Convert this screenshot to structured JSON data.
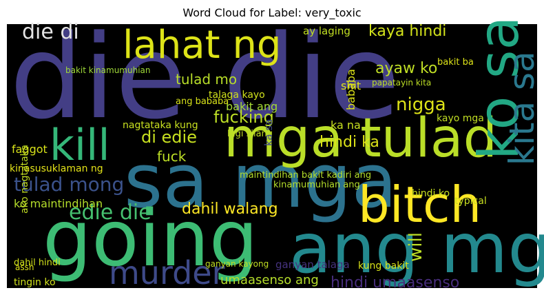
{
  "chart_data": {
    "type": "wordcloud",
    "title": "Word Cloud for Label: very_toxic",
    "background": "#000000",
    "words": [
      {
        "text": "die die",
        "color": "#433e85"
      },
      {
        "text": "sa mga",
        "color": "#2c728e"
      },
      {
        "text": "going",
        "color": "#3dbc74"
      },
      {
        "text": "ang mga",
        "color": "#23898e"
      },
      {
        "text": "mga tulad",
        "color": "#bade28"
      },
      {
        "text": "kill",
        "color": "#35b779"
      },
      {
        "text": "bitch",
        "color": "#fde725"
      },
      {
        "text": "murder",
        "color": "#3e4a89"
      },
      {
        "text": "lahat ng",
        "color": "#dde318"
      },
      {
        "text": "ko sa",
        "color": "#22a884"
      },
      {
        "text": "kita sa",
        "color": "#2a788e"
      },
      {
        "text": "die di",
        "color": "#e5e5e5"
      },
      {
        "text": "kaya hindi",
        "color": "#d2e21b"
      },
      {
        "text": "ay laging",
        "color": "#c2df23"
      },
      {
        "text": "ayaw ko",
        "color": "#c0df25"
      },
      {
        "text": "tulad mo",
        "color": "#b8de29"
      },
      {
        "text": "nigga",
        "color": "#dde318"
      },
      {
        "text": "fucking",
        "color": "#bddf26"
      },
      {
        "text": "di edie",
        "color": "#c7e020"
      },
      {
        "text": "fuck",
        "color": "#bddf26"
      },
      {
        "text": "hindi ka",
        "color": "#dde318"
      },
      {
        "text": "tulad mong",
        "color": "#3b528b"
      },
      {
        "text": "edie die",
        "color": "#46c06f"
      },
      {
        "text": "dahil walang",
        "color": "#fde725"
      },
      {
        "text": "will",
        "color": "#bddf26"
      },
      {
        "text": "hindi umaasenso",
        "color": "#472d7b"
      },
      {
        "text": "umaasenso ang",
        "color": "#b5de2b"
      },
      {
        "text": "shit",
        "color": "#dde318"
      },
      {
        "text": "bakit ang",
        "color": "#a5db36"
      },
      {
        "text": "faggot",
        "color": "#d8e219"
      },
      {
        "text": "kinasusuklaman ng",
        "color": "#e5e419"
      },
      {
        "text": "ko maintindihan",
        "color": "#b5de2b"
      },
      {
        "text": "maintindihan bakit kadiri ang",
        "color": "#b5de2b"
      },
      {
        "text": "nagtataka kung",
        "color": "#c8e020"
      },
      {
        "text": "tingin ko",
        "color": "#d0e11c"
      },
      {
        "text": "ganyan talaga",
        "color": "#46337f"
      },
      {
        "text": "kung bakit",
        "color": "#d8e219"
      },
      {
        "text": "ka na",
        "color": "#c8e020"
      },
      {
        "text": "kayo mga",
        "color": "#c2df23"
      },
      {
        "text": "ako nagtataka",
        "color": "#c2df23"
      },
      {
        "text": "bababa",
        "color": "#dde318"
      },
      {
        "text": "talaga kayo",
        "color": "#d0e11c"
      },
      {
        "text": "papatayin kita",
        "color": "#bddf26"
      },
      {
        "text": "bakit ba",
        "color": "#dde318"
      },
      {
        "text": "dahil hindi",
        "color": "#d2e21b"
      },
      {
        "text": "hindi ko",
        "color": "#c8e020"
      },
      {
        "text": "ganyan kayong",
        "color": "#c2df23"
      },
      {
        "text": "bakit kinamumuhian",
        "color": "#a0da39"
      },
      {
        "text": "kinamumuhian ang",
        "color": "#b5de2b"
      },
      {
        "text": "ang bababa",
        "color": "#d8e219"
      },
      {
        "text": "lagi silang",
        "color": "#c2df23"
      },
      {
        "text": "ka sa",
        "color": "#3e4989"
      },
      {
        "text": "typical",
        "color": "#c8e020"
      },
      {
        "text": "assh",
        "color": "#dde318"
      }
    ]
  }
}
